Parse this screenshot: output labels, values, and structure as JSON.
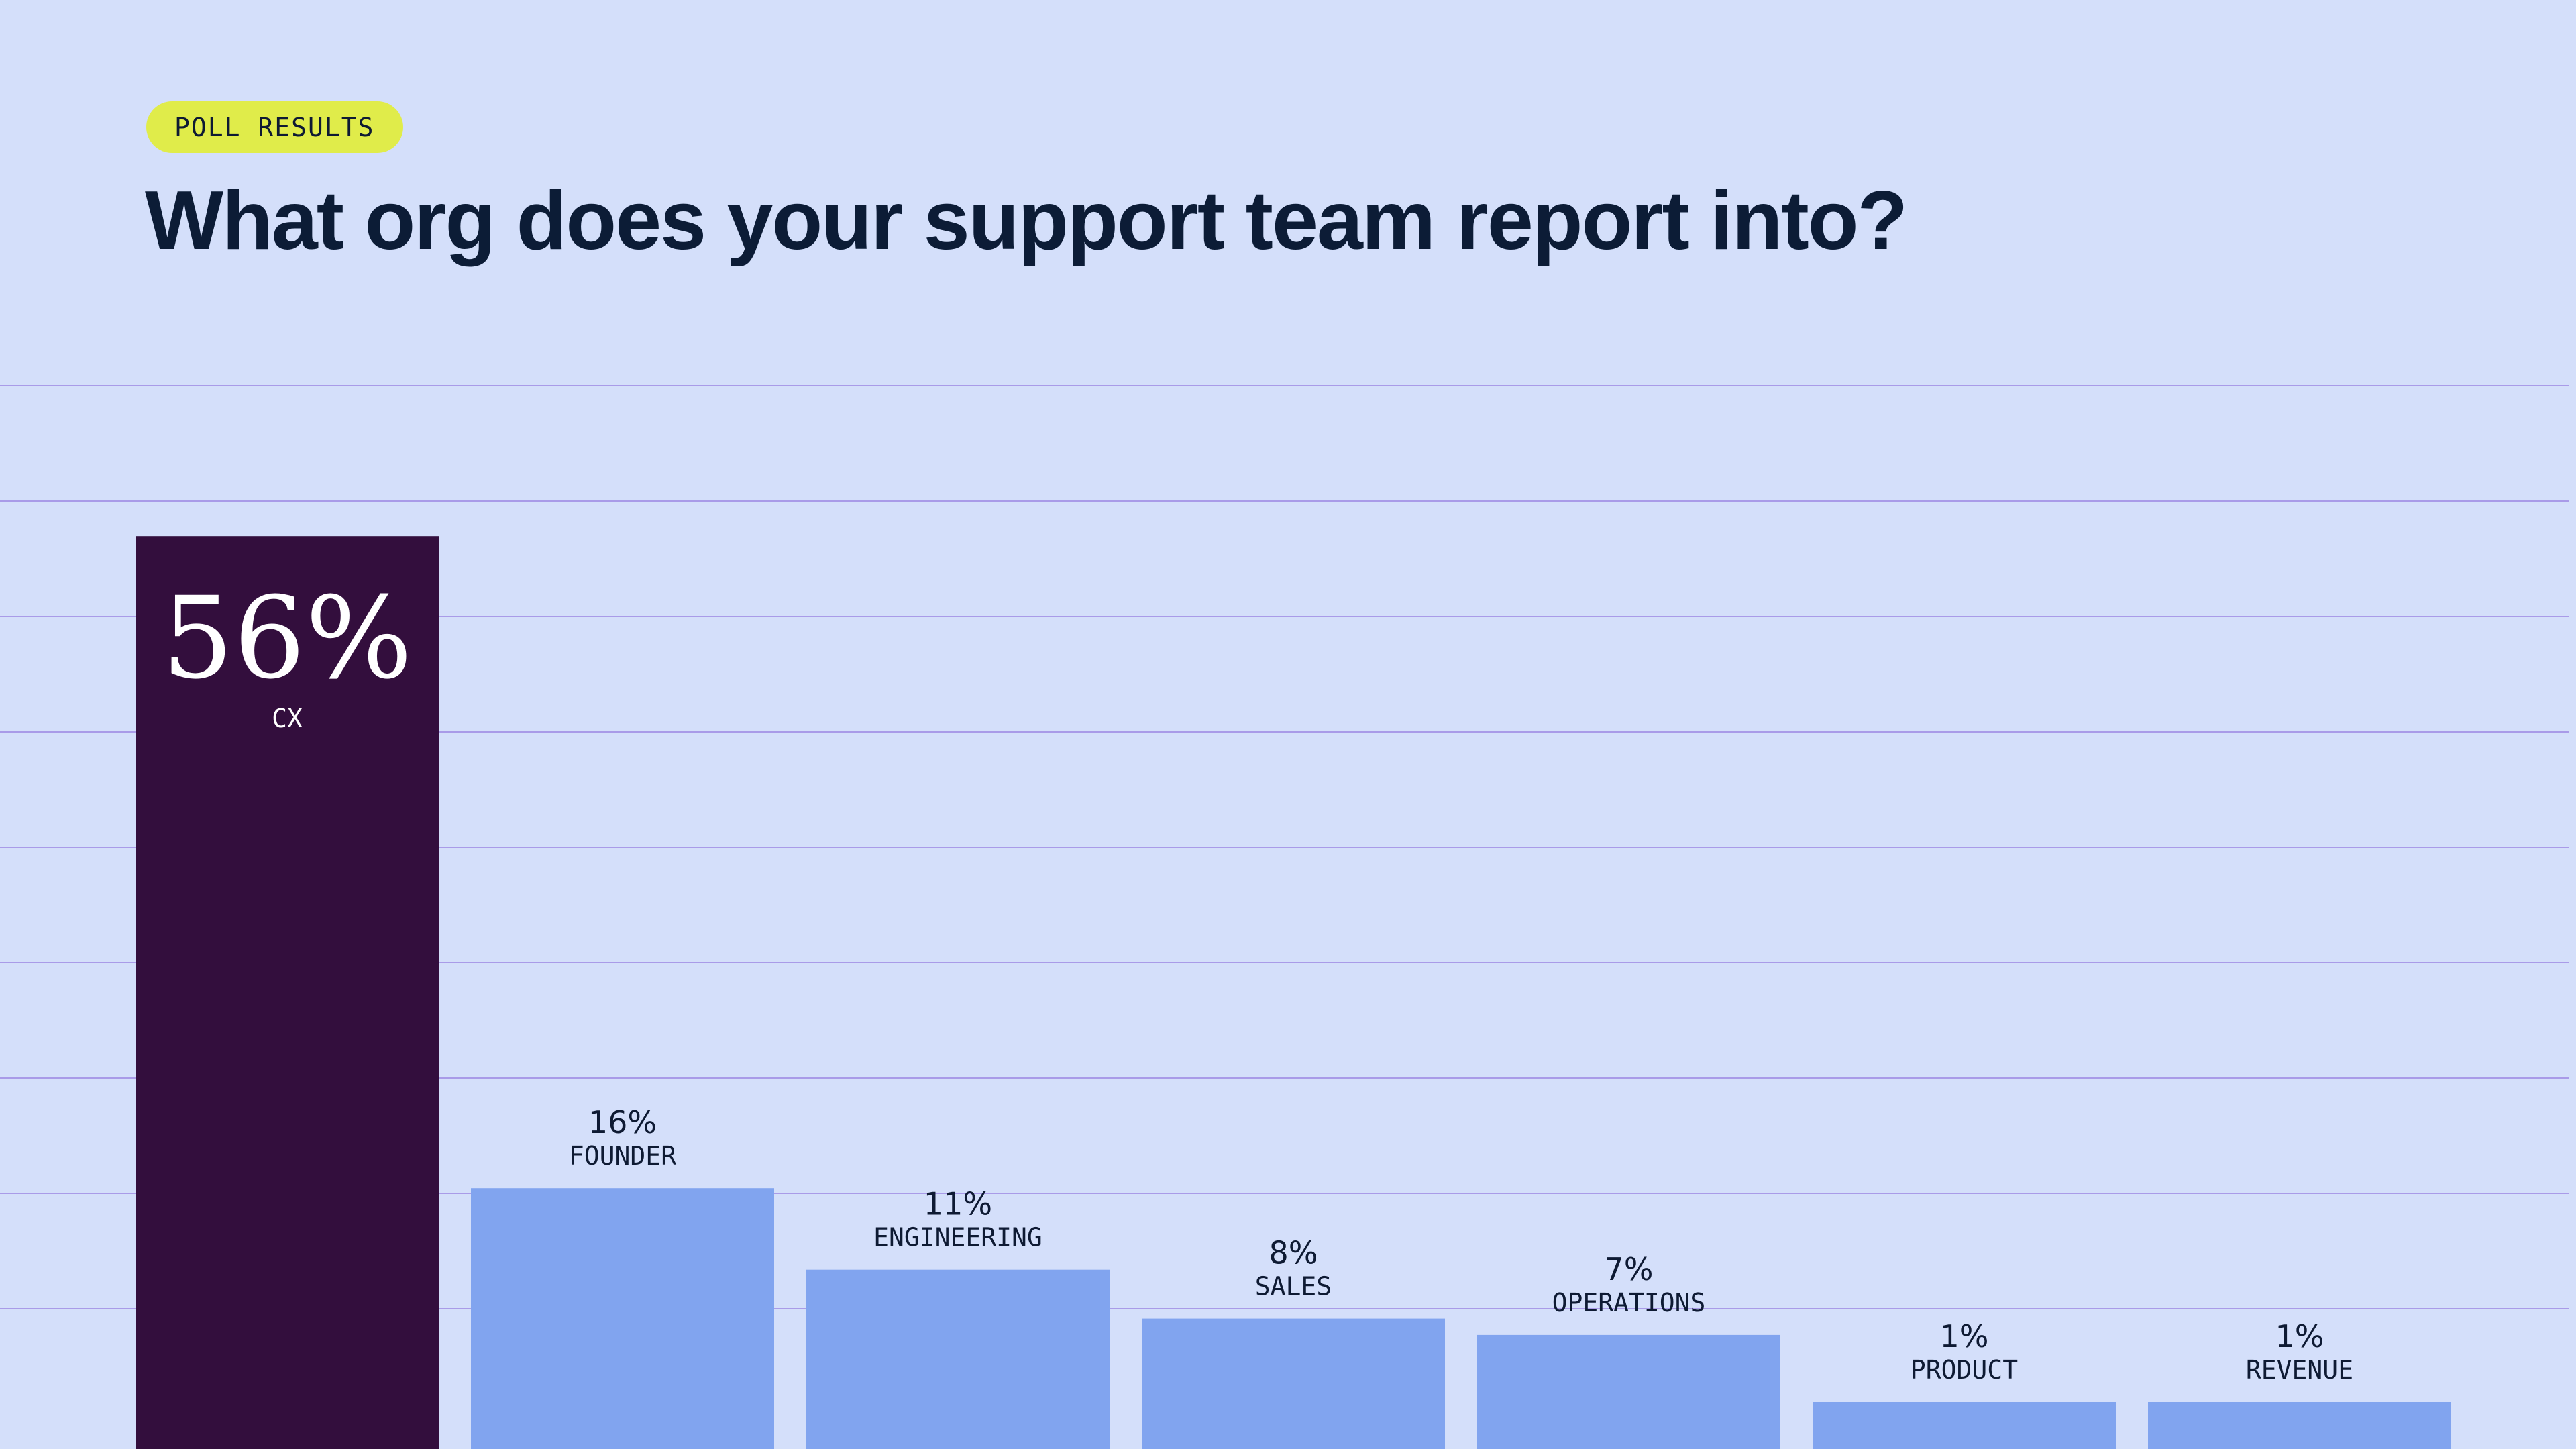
{
  "badge": "POLL RESULTS",
  "title": "What org does your support team report into?",
  "colors": {
    "background": "#d4dffa",
    "highlight_bar": "#330e3d",
    "bar": "#81a4ef",
    "gridline": "#a99be8",
    "badge": "#e0ec4a",
    "text": "#0c1c36"
  },
  "chart_data": {
    "type": "bar",
    "categories": [
      "CX",
      "FOUNDER",
      "ENGINEERING",
      "SALES",
      "OPERATIONS",
      "PRODUCT",
      "REVENUE"
    ],
    "values": [
      56,
      16,
      11,
      8,
      7,
      1,
      1
    ],
    "value_labels": [
      "56%",
      "16%",
      "11%",
      "8%",
      "7%",
      "1%",
      "1%"
    ],
    "highlighted_category": "CX",
    "unit": "%",
    "grid": true,
    "axes_visible": false,
    "legend": "none"
  }
}
